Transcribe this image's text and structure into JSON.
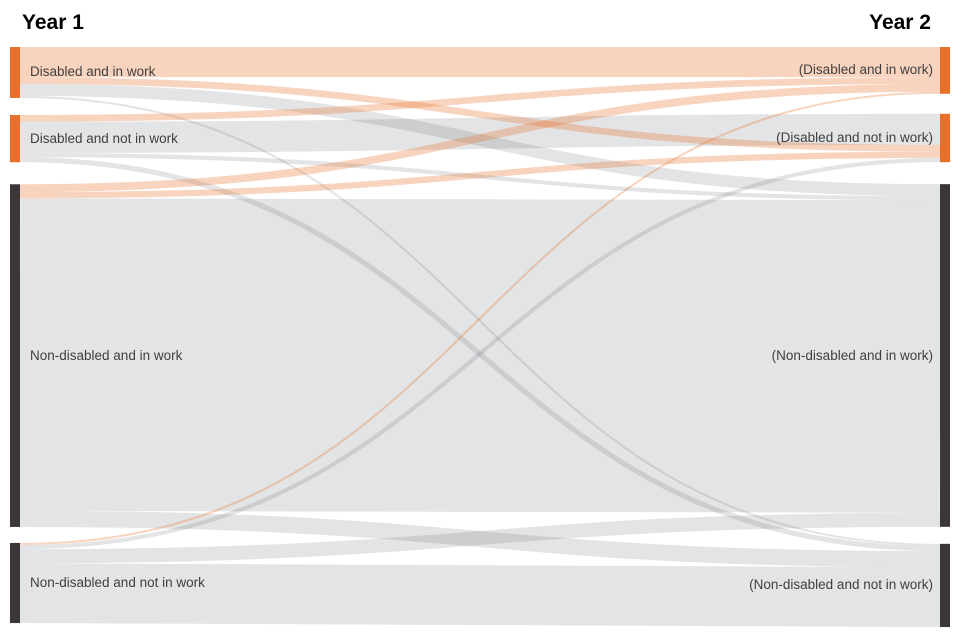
{
  "chart_data": {
    "type": "sankey",
    "title_left": "Year 1",
    "title_right": "Year 2",
    "value_note": "No numeric labels shown in chart; values are estimated relative flow sizes (percent of total, read from band thickness)",
    "nodes_left": [
      {
        "label": "Disabled and in work"
      },
      {
        "label": "Disabled and not in work"
      },
      {
        "label": "Non-disabled and in work"
      },
      {
        "label": "Non-disabled and not in work"
      }
    ],
    "nodes_right": [
      {
        "label": "(Disabled and in work)"
      },
      {
        "label": "(Disabled and not in work)"
      },
      {
        "label": "(Non-disabled and in work)"
      },
      {
        "label": "(Non-disabled and not in work)"
      }
    ],
    "links": [
      {
        "source": "Disabled and in work",
        "target": "(Disabled and in work)",
        "value": 5.8,
        "highlight": true
      },
      {
        "source": "Disabled and in work",
        "target": "(Disabled and not in work)",
        "value": 1.3,
        "highlight": true
      },
      {
        "source": "Disabled and in work",
        "target": "(Non-disabled and in work)",
        "value": 2.3,
        "highlight": false
      },
      {
        "source": "Disabled and in work",
        "target": "(Non-disabled and not in work)",
        "value": 0.4,
        "highlight": false
      },
      {
        "source": "Disabled and not in work",
        "target": "(Disabled and in work)",
        "value": 1.3,
        "highlight": true
      },
      {
        "source": "Disabled and not in work",
        "target": "(Disabled and not in work)",
        "value": 6.0,
        "highlight": false
      },
      {
        "source": "Disabled and not in work",
        "target": "(Non-disabled and in work)",
        "value": 0.8,
        "highlight": false
      },
      {
        "source": "Disabled and not in work",
        "target": "(Non-disabled and not in work)",
        "value": 1.0,
        "highlight": false
      },
      {
        "source": "Non-disabled and in work",
        "target": "(Disabled and in work)",
        "value": 1.5,
        "highlight": true
      },
      {
        "source": "Non-disabled and in work",
        "target": "(Disabled and not in work)",
        "value": 1.2,
        "highlight": true
      },
      {
        "source": "Non-disabled and in work",
        "target": "(Non-disabled and in work)",
        "value": 60.1,
        "highlight": false
      },
      {
        "source": "Non-disabled and in work",
        "target": "(Non-disabled and not in work)",
        "value": 3.1,
        "highlight": false
      },
      {
        "source": "Non-disabled and not in work",
        "target": "(Disabled and in work)",
        "value": 0.4,
        "highlight": true
      },
      {
        "source": "Non-disabled and not in work",
        "target": "(Disabled and not in work)",
        "value": 0.8,
        "highlight": false
      },
      {
        "source": "Non-disabled and not in work",
        "target": "(Non-disabled and in work)",
        "value": 2.7,
        "highlight": false
      },
      {
        "source": "Non-disabled and not in work",
        "target": "(Non-disabled and not in work)",
        "value": 11.5,
        "highlight": false
      }
    ],
    "colors": {
      "node_disabled": "#e8702a",
      "node_nondisabled": "#3b3738",
      "flow_highlight": "rgba(232,112,42,0.30)",
      "flow_default": "rgba(80,84,96,0.16)",
      "label_text": "#3f3f3f",
      "title_text": "#000000",
      "background": "#ffffff"
    },
    "layout_hints": {
      "legend": "none",
      "grid": "off",
      "node_columns": 2,
      "left_nodes_disabled_colored_orange": true
    }
  }
}
